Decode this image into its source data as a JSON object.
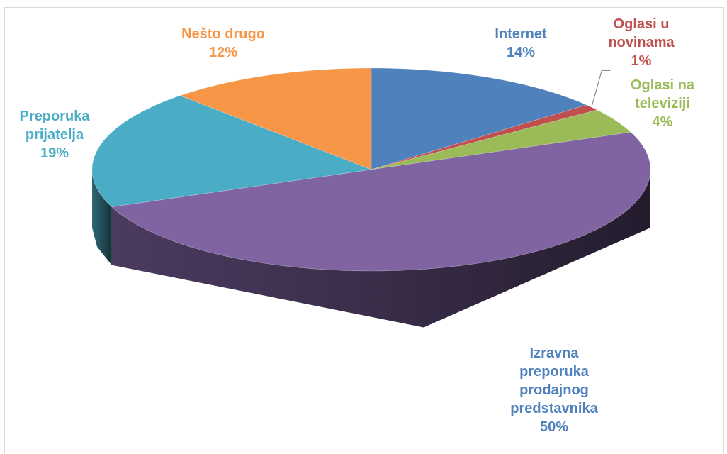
{
  "chart_data": {
    "type": "pie",
    "style": "3d",
    "title": "",
    "slices": [
      {
        "label": "Internet",
        "value": 14,
        "value_label": "14%",
        "color": "#4F81BD",
        "label_color": "#4F81BD"
      },
      {
        "label": "Oglasi u novinama",
        "value": 1,
        "value_label": "1%",
        "color": "#C0504D",
        "label_color": "#C0504D"
      },
      {
        "label": "Oglasi na televiziji",
        "value": 4,
        "value_label": "4%",
        "color": "#9BBB59",
        "label_color": "#9BBB59"
      },
      {
        "label": "Izravna preporuka prodajnog predstavnika",
        "value": 50,
        "value_label": "50%",
        "color": "#8064A2",
        "label_color": "#4F81BD"
      },
      {
        "label": "Preporuka prijatelja",
        "value": 19,
        "value_label": "19%",
        "color": "#4BACC6",
        "label_color": "#4BACC6"
      },
      {
        "label": "Nešto drugo",
        "value": 12,
        "value_label": "12%",
        "color": "#F79646",
        "label_color": "#F79646"
      }
    ],
    "label_lines": {
      "internet": [
        "Internet"
      ],
      "novine": [
        "Oglasi u",
        "novinama"
      ],
      "tv": [
        "Oglasi na",
        "televiziji"
      ],
      "izravna": [
        "Izravna",
        "preporuka",
        "prodajnog",
        "predstavnika"
      ],
      "prijatelj": [
        "Preporuka",
        "prijatelja"
      ],
      "drugo": [
        "Nešto drugo"
      ]
    },
    "legend": "none"
  }
}
